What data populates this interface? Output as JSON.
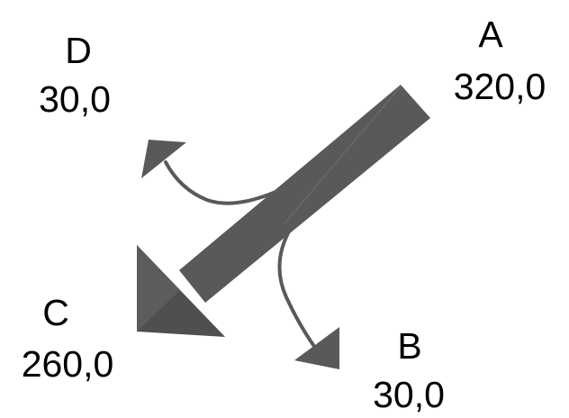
{
  "diagram": {
    "type": "flow-split",
    "colors": {
      "arrow": "#595959",
      "arrow_dark": "#4a4a4a",
      "text": "#000000",
      "background": "#ffffff"
    },
    "nodes": [
      {
        "id": "A",
        "name": "A",
        "value": "320,0"
      },
      {
        "id": "B",
        "name": "B",
        "value": "30,0"
      },
      {
        "id": "C",
        "name": "C",
        "value": "260,0"
      },
      {
        "id": "D",
        "name": "D",
        "value": "30,0"
      }
    ],
    "flows": [
      {
        "from": "A",
        "to": "C",
        "value": 260
      },
      {
        "from": "A",
        "to": "B",
        "value": 30
      },
      {
        "from": "A",
        "to": "D",
        "value": 30
      }
    ]
  }
}
